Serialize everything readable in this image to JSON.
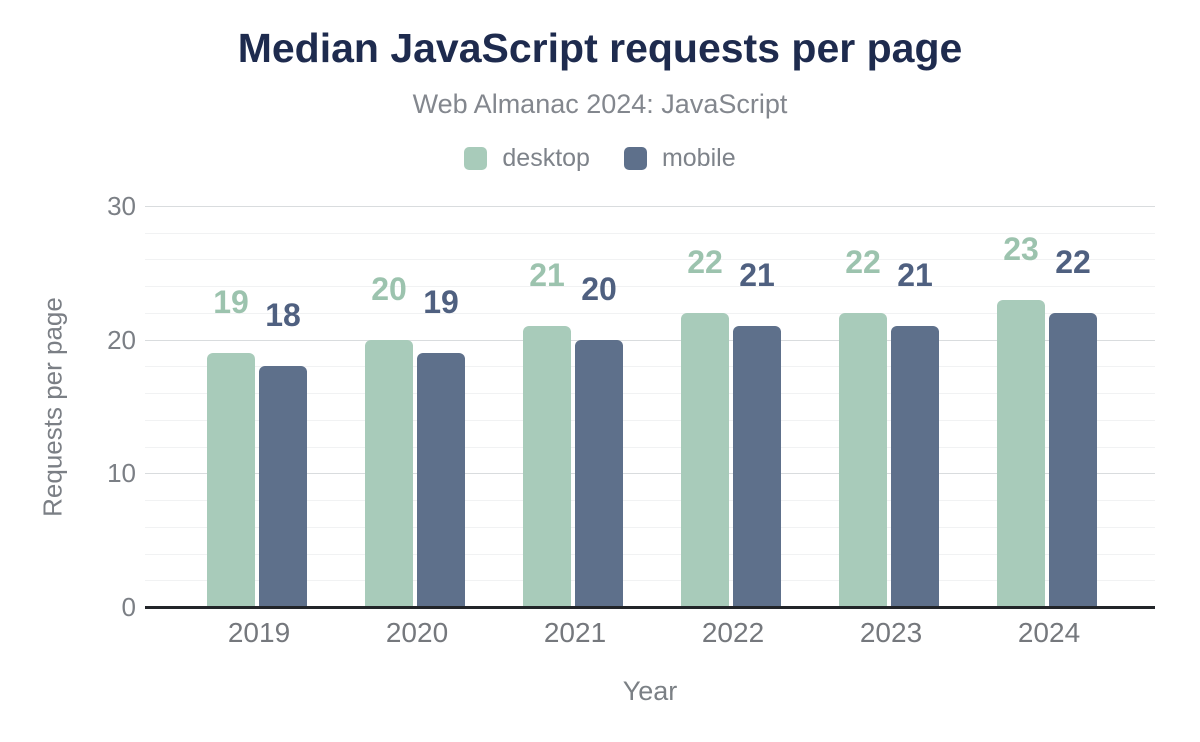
{
  "chart_data": {
    "type": "bar",
    "title": "Median JavaScript requests per page",
    "subtitle": "Web Almanac 2024: JavaScript",
    "xlabel": "Year",
    "ylabel": "Requests per page",
    "categories": [
      "2019",
      "2020",
      "2021",
      "2022",
      "2023",
      "2024"
    ],
    "series": [
      {
        "name": "desktop",
        "color": "#a8cbba",
        "label_color": "#9cc3ae",
        "values": [
          19,
          20,
          21,
          22,
          22,
          23
        ]
      },
      {
        "name": "mobile",
        "color": "#5e708b",
        "label_color": "#4f6080",
        "values": [
          18,
          19,
          20,
          21,
          21,
          22
        ]
      }
    ],
    "ylim": [
      0,
      30
    ],
    "yticks": [
      0,
      10,
      20,
      30
    ],
    "minor_grid_step": 2,
    "grid": true,
    "legend_position": "top",
    "data_labels": true,
    "background_color": "#ffffff",
    "title_color": "#1e2b4e",
    "axis_line_color": "#222529"
  }
}
